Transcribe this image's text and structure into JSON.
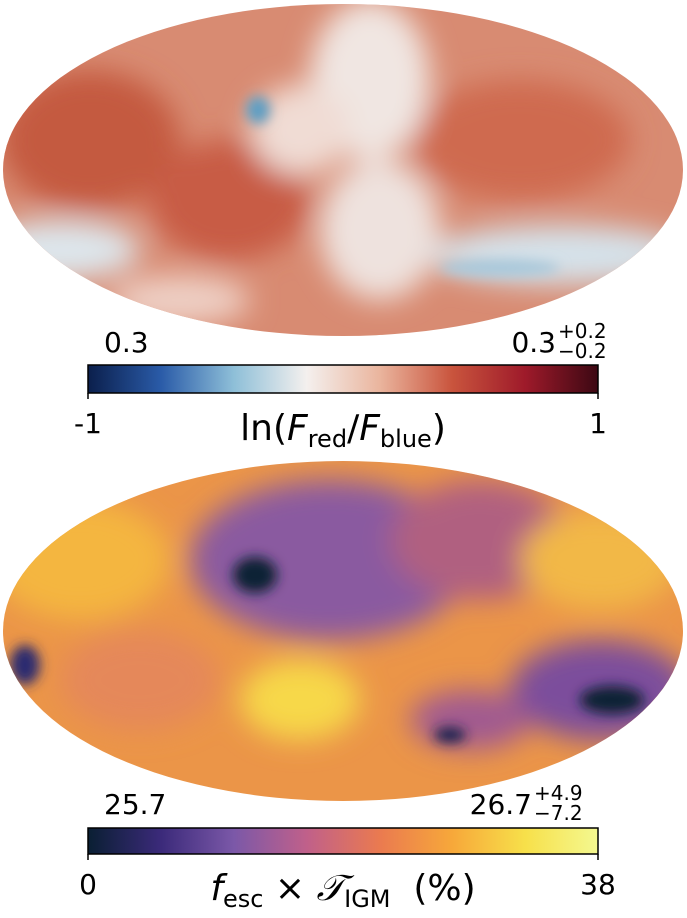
{
  "chart_data": [
    {
      "type": "mollweide",
      "colormap": [
        "#0b1f4c",
        "#2a5ba8",
        "#8ebfd8",
        "#f4f0ee",
        "#eab59e",
        "#c9543d",
        "#9e1a2a",
        "#3c0813"
      ],
      "clim": [
        -1,
        1
      ],
      "cticks": [
        -1,
        1
      ],
      "label": [
        "ln(",
        "F",
        "red",
        "/",
        "F",
        "blue",
        ")"
      ],
      "annotation_left": "0.3",
      "annotation_right": {
        "value": "0.3",
        "plus": "+0.2",
        "minus": "−0.2"
      }
    },
    {
      "type": "mollweide",
      "colormap": [
        "#0a1f33",
        "#3b2a7a",
        "#7b58a8",
        "#c0608a",
        "#ea7a50",
        "#f7a83a",
        "#f7e04a",
        "#f4f890"
      ],
      "clim": [
        0,
        38
      ],
      "cticks": [
        0,
        38
      ],
      "label": [
        "f",
        "esc",
        " × ",
        "𝒯",
        "IGM",
        "  (%)"
      ],
      "annotation_left": "25.7",
      "annotation_right": {
        "value": "26.7",
        "plus": "+4.9",
        "minus": "−7.2"
      }
    }
  ]
}
